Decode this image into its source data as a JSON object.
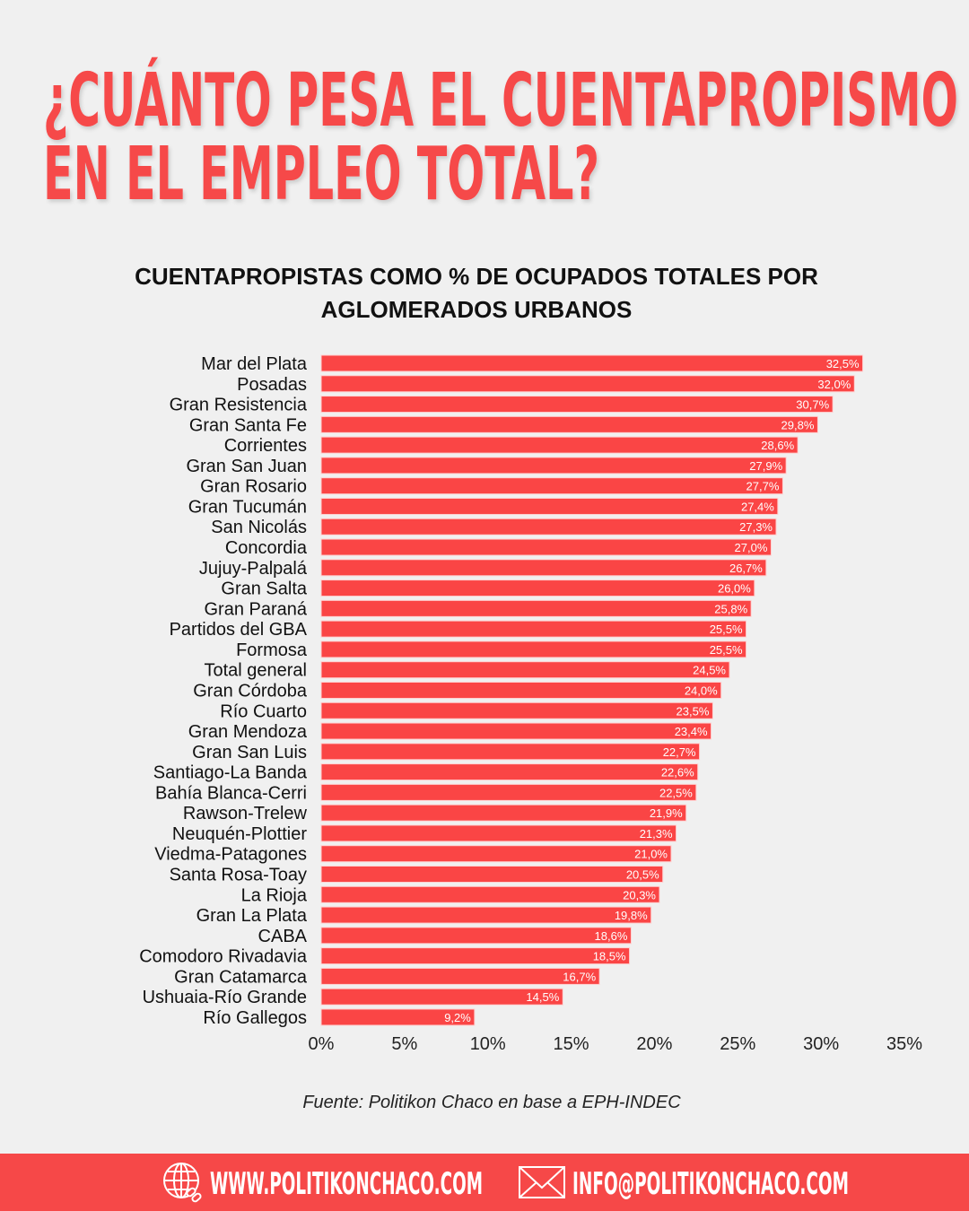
{
  "header": {
    "title_line1": "¿CUÁNTO PESA EL CUENTAPROPISMO",
    "title_line2": "EN EL EMPLEO TOTAL?"
  },
  "chart_data": {
    "type": "bar",
    "orientation": "horizontal",
    "title_line1": "CUENTAPROPISTAS COMO % DE OCUPADOS TOTALES POR",
    "title_line2": "AGLOMERADOS URBANOS",
    "categories": [
      "Mar del Plata",
      "Posadas",
      "Gran Resistencia",
      "Gran Santa Fe",
      "Corrientes",
      "Gran San Juan",
      "Gran Rosario",
      "Gran Tucumán",
      "San Nicolás",
      "Concordia",
      "Jujuy-Palpalá",
      "Gran Salta",
      "Gran Paraná",
      "Partidos del GBA",
      "Formosa",
      "Total general",
      "Gran Córdoba",
      "Río Cuarto",
      "Gran Mendoza",
      "Gran San Luis",
      "Santiago-La Banda",
      "Bahía Blanca-Cerri",
      "Rawson-Trelew",
      "Neuquén-Plottier",
      "Viedma-Patagones",
      "Santa Rosa-Toay",
      "La Rioja",
      "Gran La Plata",
      "CABA",
      "Comodoro Rivadavia",
      "Gran Catamarca",
      "Ushuaia-Río Grande",
      "Río Gallegos"
    ],
    "values": [
      32.5,
      32.0,
      30.7,
      29.8,
      28.6,
      27.9,
      27.7,
      27.4,
      27.3,
      27.0,
      26.7,
      26.0,
      25.8,
      25.5,
      25.5,
      24.5,
      24.0,
      23.5,
      23.4,
      22.7,
      22.6,
      22.5,
      21.9,
      21.3,
      21.0,
      20.5,
      20.3,
      19.8,
      18.6,
      18.5,
      16.7,
      14.5,
      9.2
    ],
    "data_labels": [
      "32,5%",
      "32,0%",
      "30,7%",
      "29,8%",
      "28,6%",
      "27,9%",
      "27,7%",
      "27,4%",
      "27,3%",
      "27,0%",
      "26,7%",
      "26,0%",
      "25,8%",
      "25,5%",
      "25,5%",
      "24,5%",
      "24,0%",
      "23,5%",
      "23,4%",
      "22,7%",
      "22,6%",
      "22,5%",
      "21,9%",
      "21,3%",
      "21,0%",
      "20,5%",
      "20,3%",
      "19,8%",
      "18,6%",
      "18,5%",
      "16,7%",
      "14,5%",
      "9,2%"
    ],
    "xlim": [
      0,
      35
    ],
    "x_ticks": [
      0,
      5,
      10,
      15,
      20,
      25,
      30,
      35
    ],
    "x_tick_labels": [
      "0%",
      "5%",
      "10%",
      "15%",
      "20%",
      "25%",
      "30%",
      "35%"
    ],
    "grid": false,
    "bar_color": "#fa4545"
  },
  "source": "Fuente: Politikon Chaco en base a EPH-INDEC",
  "footer": {
    "website": "WWW.POLITIKONCHACO.COM",
    "email": "INFO@POLITIKONCHACO.COM",
    "website_icon": "globe-link-icon",
    "email_icon": "envelope-icon",
    "background": "#f64848"
  }
}
